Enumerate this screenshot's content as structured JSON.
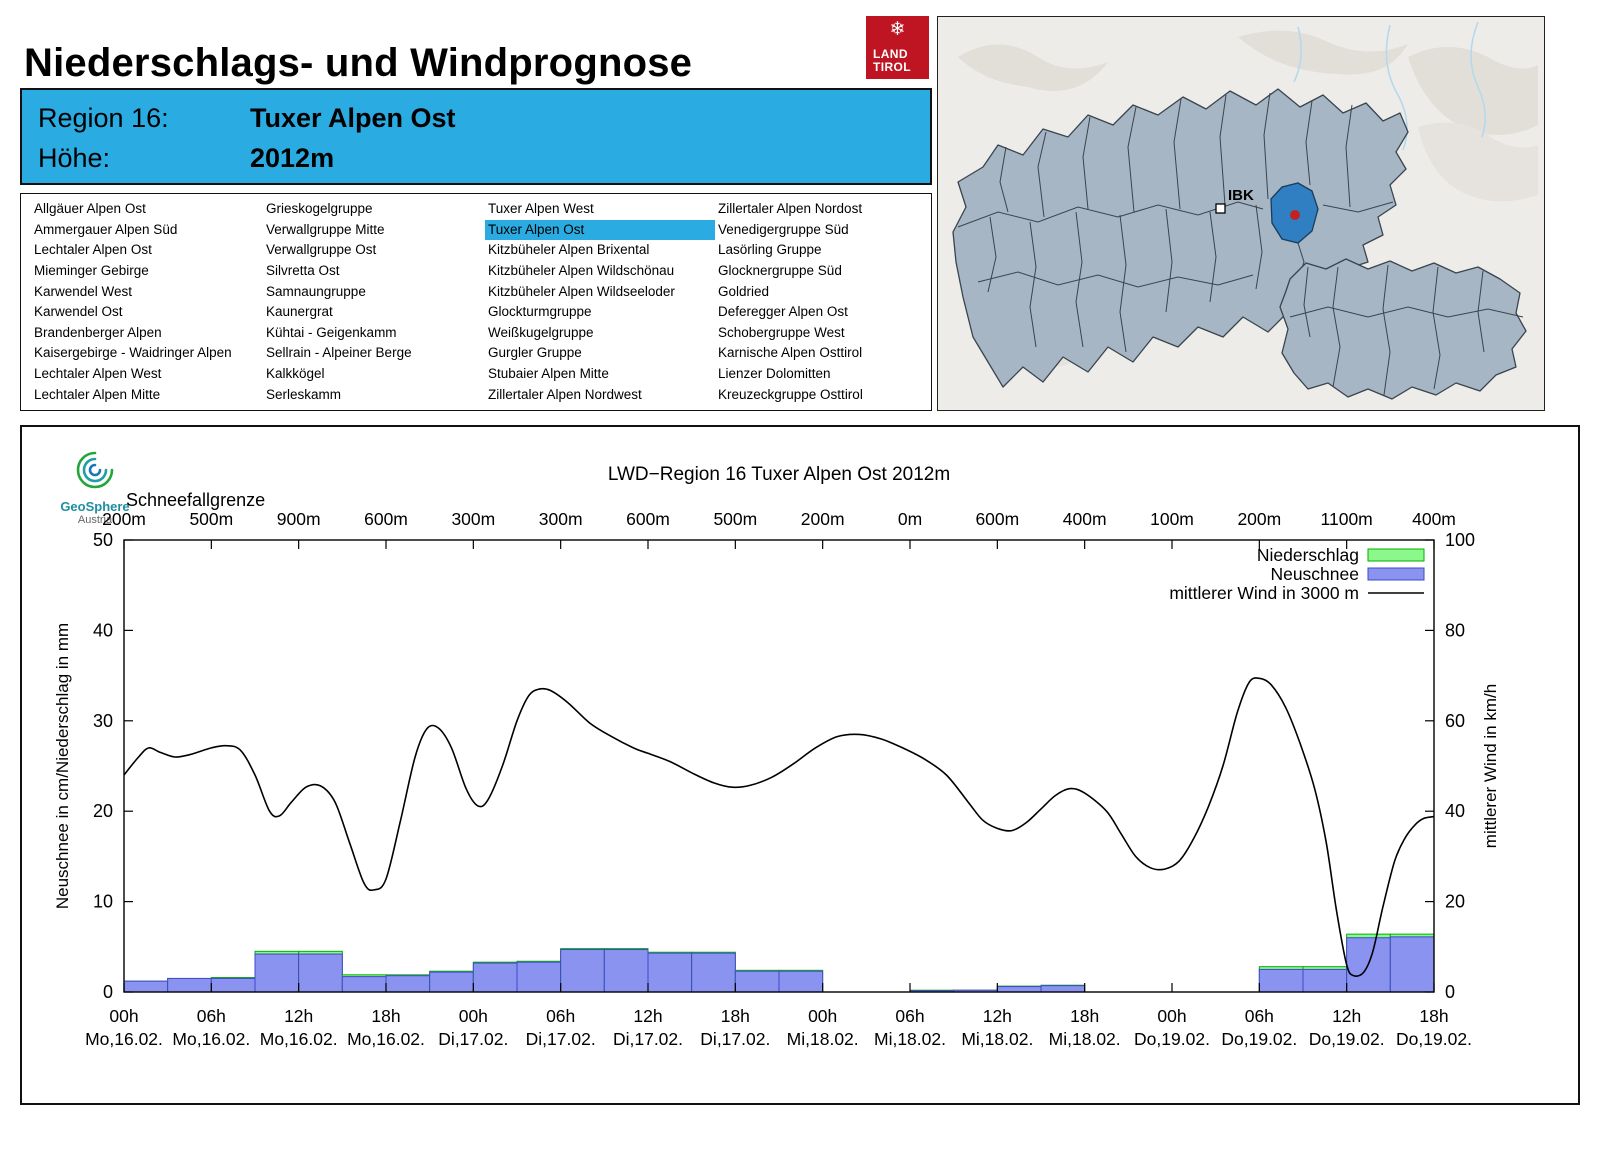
{
  "page": {
    "title": "Niederschlags- und Windprognose"
  },
  "logo": {
    "line1": "LAND",
    "line2": "TIROL",
    "color": "#bf1522"
  },
  "header": {
    "region_label": "Region 16:",
    "region_value": "Tuxer Alpen Ost",
    "altitude_label": "Höhe:",
    "altitude_value": "2012m",
    "accent_color": "#2aabe2"
  },
  "region_list": {
    "selected": "Tuxer Alpen Ost",
    "columns": [
      [
        "Allgäuer Alpen Ost",
        "Ammergauer Alpen Süd",
        "Lechtaler Alpen Ost",
        "Mieminger Gebirge",
        "Karwendel West",
        "Karwendel Ost",
        "Brandenberger Alpen",
        "Kaisergebirge - Waidringer Alpen",
        "Lechtaler Alpen West",
        "Lechtaler Alpen Mitte"
      ],
      [
        "Grieskogelgruppe",
        "Verwallgruppe Mitte",
        "Verwallgruppe Ost",
        "Silvretta Ost",
        "Samnaungruppe",
        "Kaunergrat",
        "Kühtai - Geigenkamm",
        "Sellrain - Alpeiner Berge",
        "Kalkkögel",
        "Serleskamm"
      ],
      [
        "Tuxer Alpen West",
        "Tuxer Alpen Ost",
        "Kitzbüheler Alpen Brixental",
        "Kitzbüheler Alpen Wildschönau",
        "Kitzbüheler Alpen Wildseeloder",
        "Glockturmgruppe",
        "Weißkugelgruppe",
        "Gurgler Gruppe",
        "Stubaier Alpen Mitte",
        "Zillertaler Alpen Nordwest"
      ],
      [
        "Zillertaler Alpen Nordost",
        "Venedigergruppe Süd",
        "Lasörling Gruppe",
        "Glocknergruppe Süd",
        "Goldried",
        "Deferegger Alpen Ost",
        "Schobergruppe West",
        "Karnische Alpen Osttirol",
        "Lienzer Dolomitten",
        "Kreuzeckgruppe Osttirol"
      ]
    ]
  },
  "map": {
    "ibk_label": "IBK",
    "region_fill": "#a7b6c4",
    "border_color": "#39444e",
    "highlight_color": "#2f7fc2",
    "marker_color": "#c32222"
  },
  "geosphere": {
    "name": "GeoSphere",
    "country": "Austria"
  },
  "chart_data": {
    "type": "composite",
    "subtypes": [
      "bar",
      "line"
    ],
    "title": "LWD−Region 16 Tuxer Alpen Ost 2012m",
    "top_axis": {
      "label": "Schneefallgrenze",
      "values": [
        "200m",
        "500m",
        "900m",
        "600m",
        "300m",
        "300m",
        "600m",
        "500m",
        "200m",
        "0m",
        "600m",
        "400m",
        "100m",
        "200m",
        "1100m",
        "400m"
      ]
    },
    "x_axis": {
      "range_hours": [
        0,
        90
      ],
      "tick_step_hours": 6,
      "ticks": [
        {
          "hour": "00h",
          "day": "Mo,16.02."
        },
        {
          "hour": "06h",
          "day": "Mo,16.02."
        },
        {
          "hour": "12h",
          "day": "Mo,16.02."
        },
        {
          "hour": "18h",
          "day": "Mo,16.02."
        },
        {
          "hour": "00h",
          "day": "Di,17.02."
        },
        {
          "hour": "06h",
          "day": "Di,17.02."
        },
        {
          "hour": "12h",
          "day": "Di,17.02."
        },
        {
          "hour": "18h",
          "day": "Di,17.02."
        },
        {
          "hour": "00h",
          "day": "Mi,18.02."
        },
        {
          "hour": "06h",
          "day": "Mi,18.02."
        },
        {
          "hour": "12h",
          "day": "Mi,18.02."
        },
        {
          "hour": "18h",
          "day": "Mi,18.02."
        },
        {
          "hour": "00h",
          "day": "Do,19.02."
        },
        {
          "hour": "06h",
          "day": "Do,19.02."
        },
        {
          "hour": "12h",
          "day": "Do,19.02."
        },
        {
          "hour": "18h",
          "day": "Do,19.02."
        }
      ]
    },
    "y_left": {
      "label": "Neuschnee in cm/Niederschlag in mm",
      "range": [
        0,
        50
      ],
      "ticks": [
        0,
        10,
        20,
        30,
        40,
        50
      ]
    },
    "y_right": {
      "label": "mittlerer Wind in km/h",
      "range": [
        0,
        100
      ],
      "ticks": [
        0,
        20,
        40,
        60,
        80,
        100
      ]
    },
    "legend": [
      {
        "label": "Niederschlag",
        "type": "box",
        "color": "#8cf88c",
        "border": "#00b000"
      },
      {
        "label": "Neuschnee",
        "type": "box",
        "color": "#8a93ef",
        "border": "#4048c8"
      },
      {
        "label": "mittlerer Wind in 3000 m",
        "type": "line",
        "color": "#000000"
      }
    ],
    "bars": {
      "bin_hours": 3,
      "start_hours": [
        0,
        3,
        6,
        9,
        12,
        15,
        18,
        21,
        24,
        27,
        30,
        33,
        36,
        39,
        42,
        45,
        48,
        51,
        54,
        57,
        60,
        63,
        66,
        69,
        72,
        75,
        78,
        81,
        84,
        87
      ],
      "niederschlag_mm": [
        1.2,
        1.5,
        1.6,
        4.5,
        4.5,
        1.9,
        1.9,
        2.3,
        3.3,
        3.4,
        4.8,
        4.8,
        4.4,
        4.4,
        2.4,
        2.4,
        0,
        0,
        0.2,
        0.2,
        0.65,
        0.75,
        0,
        0,
        0,
        0,
        2.8,
        2.8,
        6.4,
        6.4
      ],
      "neuschnee_cm": [
        1.2,
        1.5,
        1.5,
        4.2,
        4.2,
        1.7,
        1.8,
        2.2,
        3.2,
        3.3,
        4.7,
        4.7,
        4.3,
        4.3,
        2.3,
        2.3,
        0,
        0,
        0.15,
        0.2,
        0.6,
        0.7,
        0,
        0,
        0,
        0,
        2.5,
        2.5,
        6.0,
        6.1
      ]
    },
    "wind_kmh": [
      [
        0,
        48
      ],
      [
        1,
        52
      ],
      [
        1.7,
        54
      ],
      [
        2.5,
        53
      ],
      [
        3.5,
        52
      ],
      [
        4.5,
        52.5
      ],
      [
        6,
        54
      ],
      [
        7,
        54.5
      ],
      [
        8,
        53.5
      ],
      [
        9,
        48
      ],
      [
        10,
        40
      ],
      [
        10.7,
        39
      ],
      [
        11.5,
        42
      ],
      [
        12.5,
        45.3
      ],
      [
        13.5,
        45.6
      ],
      [
        14.5,
        42
      ],
      [
        15.5,
        33
      ],
      [
        16.5,
        24
      ],
      [
        17.2,
        22.6
      ],
      [
        18,
        25
      ],
      [
        19,
        38
      ],
      [
        20,
        52
      ],
      [
        20.8,
        58.2
      ],
      [
        21.6,
        58.4
      ],
      [
        22.5,
        54
      ],
      [
        23.5,
        45
      ],
      [
        24.3,
        41.2
      ],
      [
        25,
        42.5
      ],
      [
        26,
        50
      ],
      [
        27,
        60
      ],
      [
        27.8,
        65.5
      ],
      [
        28.5,
        67
      ],
      [
        29.3,
        66.7
      ],
      [
        30.5,
        64
      ],
      [
        32,
        59.5
      ],
      [
        33.5,
        56.5
      ],
      [
        35,
        54
      ],
      [
        36,
        52.8
      ],
      [
        37.5,
        51
      ],
      [
        39,
        48.5
      ],
      [
        40.5,
        46.3
      ],
      [
        41.8,
        45.3
      ],
      [
        43,
        45.7
      ],
      [
        44.5,
        47.5
      ],
      [
        46,
        50.5
      ],
      [
        47.5,
        54
      ],
      [
        49,
        56.5
      ],
      [
        50.5,
        57
      ],
      [
        52,
        56
      ],
      [
        53.5,
        54
      ],
      [
        55,
        51.5
      ],
      [
        56.5,
        48
      ],
      [
        58,
        42
      ],
      [
        59,
        38
      ],
      [
        60,
        36.2
      ],
      [
        61,
        35.7
      ],
      [
        62,
        37.5
      ],
      [
        63,
        40.5
      ],
      [
        64,
        43.5
      ],
      [
        65,
        45
      ],
      [
        66,
        44
      ],
      [
        67.5,
        40
      ],
      [
        68.5,
        35
      ],
      [
        69.5,
        30
      ],
      [
        70.5,
        27.5
      ],
      [
        71.5,
        27.2
      ],
      [
        72.5,
        29
      ],
      [
        73.5,
        34
      ],
      [
        74.5,
        41
      ],
      [
        75.5,
        50
      ],
      [
        76.5,
        62
      ],
      [
        77.3,
        68.5
      ],
      [
        78,
        69.4
      ],
      [
        78.8,
        68
      ],
      [
        79.8,
        63
      ],
      [
        80.8,
        55
      ],
      [
        81.8,
        45
      ],
      [
        82.6,
        33
      ],
      [
        83.3,
        18
      ],
      [
        84,
        6
      ],
      [
        84.5,
        3.6
      ],
      [
        85.2,
        4.5
      ],
      [
        85.8,
        9
      ],
      [
        86.5,
        19
      ],
      [
        87.3,
        29
      ],
      [
        88,
        34
      ],
      [
        88.7,
        37
      ],
      [
        89.3,
        38.4
      ],
      [
        90,
        38.8
      ]
    ]
  }
}
